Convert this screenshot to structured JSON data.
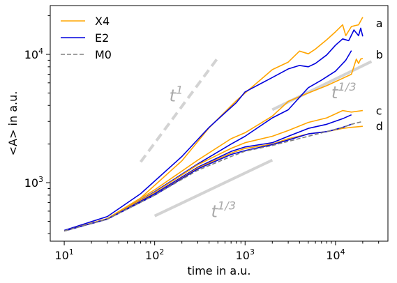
{
  "chart_data": {
    "type": "line",
    "xscale": "log",
    "yscale": "log",
    "xlabel": "time in a.u.",
    "ylabel": "<A> in a.u.",
    "xlim": [
      7,
      38000
    ],
    "ylim": [
      350,
      24000
    ],
    "xticks": [
      {
        "value": 10,
        "base": "10",
        "exp": "1"
      },
      {
        "value": 100,
        "base": "10",
        "exp": "2"
      },
      {
        "value": 1000,
        "base": "10",
        "exp": "3"
      },
      {
        "value": 10000,
        "base": "10",
        "exp": "4"
      }
    ],
    "yticks": [
      {
        "value": 1000,
        "base": "10",
        "exp": "3"
      },
      {
        "value": 10000,
        "base": "10",
        "exp": "4"
      }
    ],
    "legend": {
      "placement": "top-left",
      "entries": [
        {
          "label": "X4",
          "color": "#FFA500",
          "dash": "solid"
        },
        {
          "label": "E2",
          "color": "#0000DD",
          "dash": "solid"
        },
        {
          "label": "M0",
          "color": "#808080",
          "dash": "dashed"
        }
      ]
    },
    "series": [
      {
        "legend": "X4",
        "color": "#FFA500",
        "dash": "solid",
        "points": [
          [
            10,
            420
          ],
          [
            30,
            525
          ],
          [
            70,
            760
          ],
          [
            200,
            1480
          ],
          [
            400,
            2680
          ],
          [
            800,
            4350
          ],
          [
            1000,
            5000
          ],
          [
            2000,
            7600
          ],
          [
            3000,
            8700
          ],
          [
            4000,
            10600
          ],
          [
            5000,
            10100
          ],
          [
            6000,
            11000
          ],
          [
            8000,
            13000
          ],
          [
            10000,
            15000
          ],
          [
            12000,
            17000
          ],
          [
            13000,
            14000
          ],
          [
            15000,
            16500
          ],
          [
            18000,
            17000
          ],
          [
            20000,
            19500
          ]
        ]
      },
      {
        "legend": "E2",
        "color": "#0000DD",
        "dash": "solid",
        "points": [
          [
            10,
            425
          ],
          [
            30,
            545
          ],
          [
            70,
            820
          ],
          [
            200,
            1600
          ],
          [
            400,
            2700
          ],
          [
            600,
            3500
          ],
          [
            800,
            4200
          ],
          [
            1000,
            5100
          ],
          [
            2000,
            6600
          ],
          [
            3000,
            7700
          ],
          [
            4000,
            8200
          ],
          [
            5000,
            8000
          ],
          [
            6000,
            8500
          ],
          [
            8000,
            9900
          ],
          [
            10000,
            11800
          ],
          [
            12000,
            13200
          ],
          [
            14000,
            12800
          ],
          [
            16000,
            15500
          ],
          [
            18000,
            14000
          ],
          [
            19000,
            16000
          ],
          [
            20000,
            13800
          ]
        ]
      },
      {
        "legend": "X4",
        "color": "#FFA500",
        "dash": "solid",
        "points": [
          [
            10,
            420
          ],
          [
            30,
            525
          ],
          [
            100,
            880
          ],
          [
            300,
            1500
          ],
          [
            700,
            2200
          ],
          [
            1000,
            2450
          ],
          [
            2000,
            3300
          ],
          [
            3000,
            4300
          ],
          [
            5000,
            5000
          ],
          [
            8000,
            5700
          ],
          [
            12000,
            6500
          ],
          [
            15000,
            7000
          ],
          [
            17000,
            9200
          ],
          [
            18000,
            8500
          ],
          [
            19000,
            9200
          ],
          [
            20000,
            9300
          ]
        ]
      },
      {
        "legend": "E2",
        "color": "#0000DD",
        "dash": "solid",
        "points": [
          [
            10,
            420
          ],
          [
            30,
            520
          ],
          [
            100,
            850
          ],
          [
            300,
            1400
          ],
          [
            700,
            2000
          ],
          [
            1000,
            2300
          ],
          [
            2000,
            3200
          ],
          [
            3000,
            3700
          ],
          [
            5000,
            5500
          ],
          [
            7000,
            6300
          ],
          [
            10000,
            7400
          ],
          [
            13000,
            9000
          ],
          [
            15000,
            10700
          ]
        ]
      },
      {
        "legend": "X4",
        "color": "#FFA500",
        "dash": "solid",
        "points": [
          [
            10,
            420
          ],
          [
            30,
            525
          ],
          [
            100,
            840
          ],
          [
            300,
            1380
          ],
          [
            700,
            1850
          ],
          [
            1000,
            2050
          ],
          [
            2000,
            2300
          ],
          [
            3000,
            2550
          ],
          [
            5000,
            2950
          ],
          [
            8000,
            3200
          ],
          [
            12000,
            3650
          ],
          [
            15000,
            3550
          ],
          [
            20000,
            3650
          ]
        ]
      },
      {
        "legend": "E2",
        "color": "#0000DD",
        "dash": "solid",
        "points": [
          [
            10,
            420
          ],
          [
            30,
            520
          ],
          [
            100,
            820
          ],
          [
            300,
            1320
          ],
          [
            700,
            1750
          ],
          [
            1000,
            1900
          ],
          [
            2000,
            2050
          ],
          [
            3000,
            2300
          ],
          [
            5000,
            2650
          ],
          [
            8000,
            2850
          ],
          [
            12000,
            3150
          ],
          [
            15000,
            3380
          ]
        ]
      },
      {
        "legend": "X4",
        "color": "#FFA500",
        "dash": "solid",
        "points": [
          [
            10,
            420
          ],
          [
            30,
            520
          ],
          [
            100,
            800
          ],
          [
            300,
            1300
          ],
          [
            700,
            1700
          ],
          [
            1000,
            1850
          ],
          [
            2000,
            2000
          ],
          [
            3000,
            2200
          ],
          [
            5000,
            2400
          ],
          [
            8000,
            2500
          ],
          [
            12000,
            2650
          ],
          [
            15000,
            2700
          ],
          [
            20000,
            2750
          ]
        ]
      },
      {
        "legend": "E2",
        "color": "#0000DD",
        "dash": "solid",
        "points": [
          [
            10,
            420
          ],
          [
            30,
            520
          ],
          [
            100,
            800
          ],
          [
            300,
            1280
          ],
          [
            700,
            1660
          ],
          [
            1000,
            1780
          ],
          [
            2000,
            1980
          ],
          [
            3000,
            2150
          ],
          [
            5000,
            2400
          ],
          [
            8000,
            2500
          ],
          [
            10000,
            2600
          ],
          [
            12000,
            2700
          ],
          [
            15000,
            2850
          ]
        ]
      },
      {
        "legend": "M0",
        "color": "#808080",
        "dash": "dashed",
        "points": [
          [
            10,
            420
          ],
          [
            30,
            520
          ],
          [
            100,
            800
          ],
          [
            300,
            1250
          ],
          [
            700,
            1600
          ],
          [
            1000,
            1760
          ],
          [
            2000,
            1950
          ],
          [
            3000,
            2100
          ],
          [
            5000,
            2300
          ],
          [
            8000,
            2500
          ],
          [
            12000,
            2700
          ],
          [
            15000,
            2850
          ],
          [
            20000,
            3000
          ]
        ]
      }
    ],
    "guides": [
      {
        "x": [
          70,
          500
        ],
        "y": [
          1450,
          9400
        ],
        "dashed": true,
        "label_base": "t",
        "label_exp": "1",
        "label_at": [
          145,
          4300
        ]
      },
      {
        "x": [
          100,
          2000
        ],
        "y": [
          550,
          1500
        ],
        "dashed": false,
        "label_base": "t",
        "label_exp": "1/3",
        "label_at": [
          420,
          540
        ]
      },
      {
        "x": [
          2000,
          25000
        ],
        "y": [
          3700,
          8800
        ],
        "dashed": false,
        "label_base": "t",
        "label_exp": "1/3",
        "label_at": [
          9000,
          4550
        ]
      }
    ],
    "end_labels": [
      {
        "text": "a",
        "at": [
          28000,
          17600
        ]
      },
      {
        "text": "b",
        "at": [
          28000,
          10000
        ]
      },
      {
        "text": "c",
        "at": [
          28000,
          3650
        ]
      },
      {
        "text": "d",
        "at": [
          28000,
          2780
        ]
      }
    ],
    "grid": false
  }
}
